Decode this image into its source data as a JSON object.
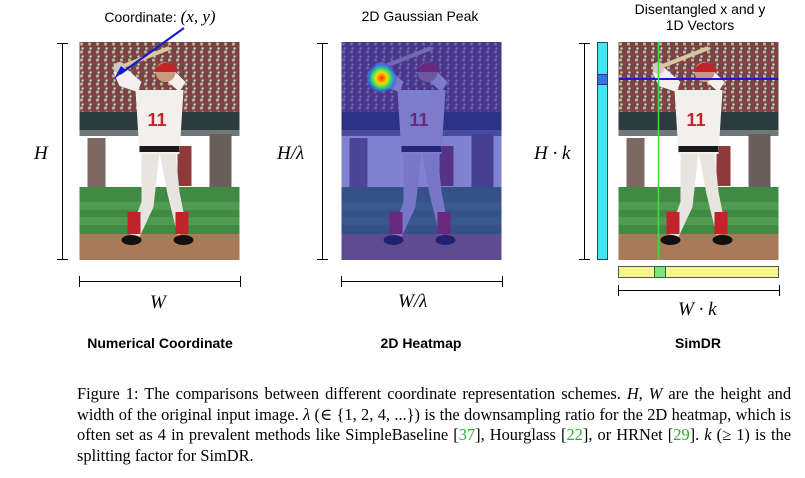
{
  "panels": {
    "numerical": {
      "top_label_prefix": "Coordinate: ",
      "top_label_math": "(x, y)",
      "height_label": "H",
      "width_label": "W",
      "title": "Numerical Coordinate"
    },
    "heatmap": {
      "top_label": "2D Gaussian Peak",
      "height_label": "H/λ",
      "width_label": "W/λ",
      "title": "2D Heatmap"
    },
    "simdr": {
      "top_label_line1": "Disentangled x and y",
      "top_label_line2": "1D Vectors",
      "height_label": "H · k",
      "width_label": "W · k",
      "title": "SimDR"
    }
  },
  "caption": {
    "figure_label": "Figure 1:",
    "t1": " The comparisons between different coordinate representation schemes. ",
    "m1": "H, W",
    "t2": " are the height and width of the original input image. ",
    "m2": "λ",
    "t3": " (∈ {1, 2, 4, ...}) is the downsampling ratio for the 2D heatmap, which is often set as 4 in prevalent methods like SimpleBaseline [",
    "ref1": "37",
    "t4": "], Hourglass [",
    "ref2": "22",
    "t5": "], or HRNet [",
    "ref3": "29",
    "t6": "]. ",
    "m3": "k",
    "t7": " (≥ 1) is the splitting factor for SimDR."
  },
  "colors": {
    "cyan_vector": "#40e6f0",
    "yellow_vector": "#f5f58a",
    "blue_line": "#1a1acc",
    "green_line": "#3adf3a",
    "reference_green": "#2bb02b"
  }
}
